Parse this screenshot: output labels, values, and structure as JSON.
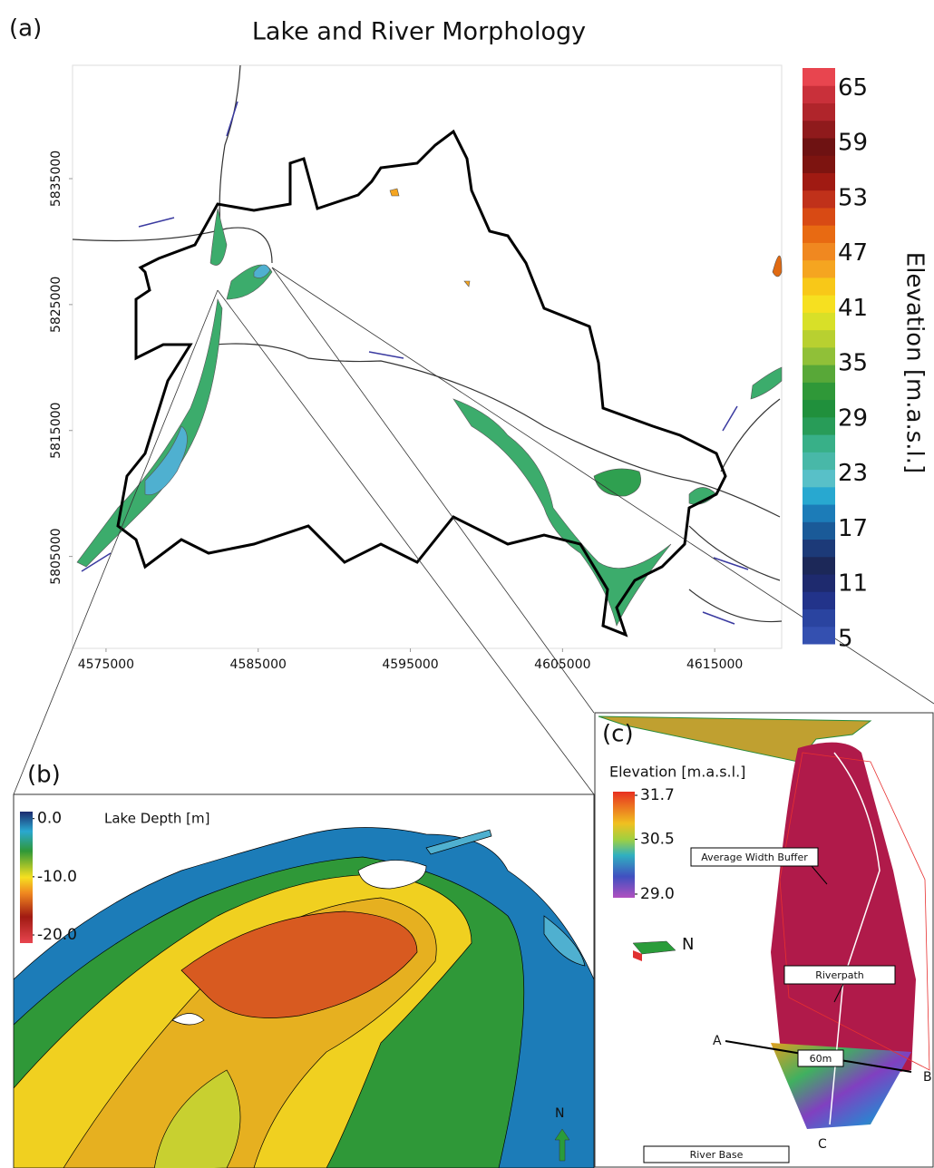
{
  "panel_a": {
    "label": "(a)",
    "title": "Lake and River Morphology",
    "xticks": [
      4575000,
      4585000,
      4595000,
      4605000,
      4615000
    ],
    "xlim": [
      4572800,
      4619400
    ],
    "yticks": [
      5805000,
      5815000,
      5825000,
      5835000
    ],
    "ylim": [
      5797700,
      5844000
    ],
    "colorbar": {
      "label": "Elevation [m.a.s.l.]",
      "ticks": [
        5,
        11,
        17,
        23,
        29,
        35,
        41,
        47,
        53,
        59,
        65
      ],
      "lim": [
        4.5,
        67.2
      ],
      "colors": [
        "#3450b0",
        "#2a44a0",
        "#22338a",
        "#1e2a6e",
        "#1c2858",
        "#1c3a78",
        "#1a5a98",
        "#1c7cb8",
        "#28a8d0",
        "#58c0c8",
        "#48b8a8",
        "#38b088",
        "#289c58",
        "#20903c",
        "#2f9838",
        "#58a838",
        "#90c038",
        "#b8d030",
        "#d8e028",
        "#f6e020",
        "#f8c818",
        "#f5a520",
        "#f08820",
        "#e86a12",
        "#d84a14",
        "#c0311a",
        "#a01a12",
        "#7d1410",
        "#6e1212",
        "#8f1a1c",
        "#b0252b",
        "#c9303a",
        "#e8454f"
      ]
    }
  },
  "panel_b": {
    "label": "(b)",
    "north": "N",
    "colorbar": {
      "label": "Lake Depth [m]",
      "ticks": [
        {
          "value": 0,
          "label": "0.0"
        },
        {
          "value": -10,
          "label": "-10.0"
        },
        {
          "value": -20,
          "label": "-20.0"
        }
      ],
      "lim": [
        -21.4,
        1.2
      ]
    }
  },
  "panel_c": {
    "label": "(c)",
    "north": "N",
    "colorbar": {
      "label": "Elevation [m.a.s.l.]",
      "ticks": [
        31.7,
        30.5,
        {
          "value": 29,
          "label": "29.0"
        }
      ],
      "lim": [
        28.9,
        31.8
      ]
    },
    "annotations": {
      "buffer": "Average Width Buffer",
      "riverpath": "Riverpath",
      "width": "60m",
      "river_base": "River Base",
      "a": "A",
      "b": "B",
      "c": "C"
    }
  }
}
